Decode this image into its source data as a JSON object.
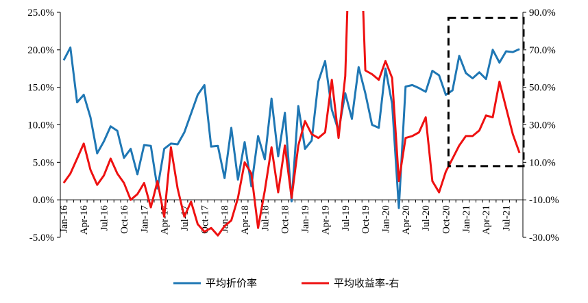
{
  "chart_data": {
    "type": "line",
    "x": [
      "Jan-16",
      "Feb-16",
      "Mar-16",
      "Apr-16",
      "May-16",
      "Jun-16",
      "Jul-16",
      "Aug-16",
      "Sep-16",
      "Oct-16",
      "Nov-16",
      "Dec-16",
      "Jan-17",
      "Feb-17",
      "Mar-17",
      "Apr-17",
      "May-17",
      "Jun-17",
      "Jul-17",
      "Aug-17",
      "Sep-17",
      "Oct-17",
      "Nov-17",
      "Dec-17",
      "Jan-18",
      "Feb-18",
      "Mar-18",
      "Apr-18",
      "May-18",
      "Jun-18",
      "Jul-18",
      "Aug-18",
      "Sep-18",
      "Oct-18",
      "Nov-18",
      "Dec-18",
      "Jan-19",
      "Feb-19",
      "Mar-19",
      "Apr-19",
      "May-19",
      "Jun-19",
      "Jul-19",
      "Aug-19",
      "Sep-19",
      "Oct-19",
      "Nov-19",
      "Dec-19",
      "Jan-20",
      "Feb-20",
      "Mar-20",
      "Apr-20",
      "May-20",
      "Jun-20",
      "Jul-20",
      "Aug-20",
      "Sep-20",
      "Oct-20",
      "Nov-20",
      "Dec-20",
      "Jan-21",
      "Feb-21",
      "Mar-21",
      "Apr-21",
      "May-21",
      "Jun-21",
      "Jul-21",
      "Aug-21",
      "Sep-21"
    ],
    "x_tick_labels": [
      "Jan-16",
      "Apr-16",
      "Jul-16",
      "Oct-16",
      "Jan-17",
      "Apr-17",
      "Jul-17",
      "Oct-17",
      "Jan-18",
      "Apr-18",
      "Jul-18",
      "Oct-18",
      "Jan-19",
      "Apr-19",
      "Jul-19",
      "Oct-19",
      "Jan-20",
      "Apr-20",
      "Jul-20",
      "Oct-20",
      "Jan-21",
      "Apr-21",
      "Jul-21"
    ],
    "y_left": {
      "min": -5,
      "max": 25,
      "step": 5,
      "tick_labels": [
        "-5.0%",
        "0.0%",
        "5.0%",
        "10.0%",
        "15.0%",
        "20.0%",
        "25.0%"
      ]
    },
    "y_right": {
      "min": -30,
      "max": 90,
      "step": 20,
      "tick_labels": [
        "-30.0%",
        "-10.0%",
        "10.0%",
        "30.0%",
        "50.0%",
        "70.0%",
        "90.0%"
      ]
    },
    "series": [
      {
        "name": "平均折价率",
        "axis": "left",
        "color": "#1f77b4",
        "values": [
          18.6,
          20.3,
          13.0,
          14.0,
          11.0,
          6.2,
          7.8,
          9.8,
          9.2,
          5.6,
          6.8,
          3.4,
          7.3,
          7.2,
          1.5,
          6.8,
          7.5,
          7.4,
          9.0,
          11.5,
          14.0,
          15.3,
          7.1,
          7.2,
          2.9,
          9.6,
          2.7,
          7.7,
          1.8,
          8.5,
          5.4,
          13.5,
          5.8,
          11.6,
          -0.2,
          12.5,
          6.8,
          7.9,
          15.8,
          18.5,
          12.0,
          9.2,
          14.2,
          10.8,
          17.7,
          14.2,
          10.0,
          9.6,
          17.5,
          12.8,
          -1.1,
          15.1,
          15.3,
          14.9,
          14.4,
          17.2,
          16.6,
          14.0,
          14.6,
          19.2,
          16.9,
          16.2,
          17.0,
          16.1,
          20.0,
          18.3,
          19.8,
          19.7,
          20.1
        ]
      },
      {
        "name": "平均收益率-右",
        "axis": "right",
        "color": "#ee1111",
        "values": [
          -1,
          4,
          12,
          20,
          6,
          -2,
          3,
          12,
          4,
          -1,
          -10,
          -7,
          -1,
          -14,
          0,
          -19,
          18,
          -4,
          -19,
          -11,
          -23,
          -27,
          -25,
          -29,
          -24,
          -21,
          -9,
          10,
          4,
          -25,
          -5,
          18,
          -6,
          19,
          -9,
          19,
          32,
          25,
          23,
          26,
          54,
          23,
          56,
          170,
          160,
          59,
          57,
          54,
          64,
          55,
          0,
          23,
          24,
          26,
          34,
          0,
          -6,
          5,
          12,
          19,
          24,
          24,
          27,
          35,
          34,
          53,
          39,
          25,
          15
        ]
      }
    ],
    "highlight_box": {
      "from": "Nov-20",
      "to": "Sep-21",
      "style": "dashed"
    },
    "legend": {
      "position": "bottom"
    }
  }
}
